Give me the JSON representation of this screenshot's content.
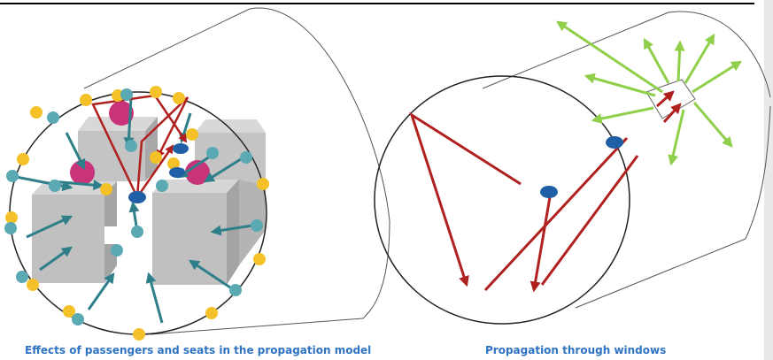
{
  "captions": {
    "left": "Effects of passengers and seats in the propagation model",
    "right": "Propagation through windows"
  },
  "colors": {
    "caption": "#2f74c4",
    "ray_red": "#b0201f",
    "ray_teal": "#2f7f8a",
    "ray_green": "#8fcf4a",
    "seat_gray": "#c8c8c8",
    "scatter_teal": "#5aa9b3",
    "scatter_yellow": "#f4c128",
    "passenger_magenta": "#c8337a",
    "transmitter_blue": "#1f5fa6",
    "outline": "#333333"
  },
  "icons": {
    "transmitter": "blue-ellipse",
    "passenger": "magenta-circle",
    "scatterer": "small-circle"
  }
}
